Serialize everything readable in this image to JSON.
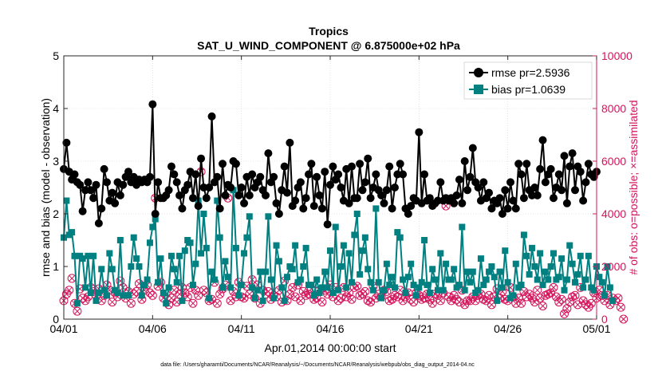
{
  "chart_data": {
    "type": "line",
    "title": "Tropics",
    "subtitle": "SAT_U_WIND_COMPONENT @ 6.875000e+02 hPa",
    "xlabel": "Apr.01,2014 00:00:00 start",
    "ylabel_left": "rmse and bias (model - observation)",
    "ylabel_right": "# of obs: o=possible; ×=assimilated",
    "footnote": "data file: /Users/gharamti/Documents/NCAR/Reanalysis/~/Documents/NCAR/Reanalysis/webpub/obs_diag_output_2014-04.nc",
    "xlim": [
      0,
      30
    ],
    "ylim_left": [
      0,
      5
    ],
    "ylim_right": [
      0,
      10000
    ],
    "x_tick_values": [
      0,
      5,
      10,
      15,
      20,
      25,
      30
    ],
    "x_tick_labels": [
      "04/01",
      "04/06",
      "04/11",
      "04/16",
      "04/21",
      "04/26",
      "05/01"
    ],
    "y_left_ticks": [
      0,
      1,
      2,
      3,
      4,
      5
    ],
    "y_right_ticks": [
      0,
      2000,
      4000,
      6000,
      8000,
      10000
    ],
    "legend": [
      "rmse pr=2.5936",
      "bias pr=1.0639"
    ],
    "legend_position": "top-right",
    "colors": {
      "rmse": "#000000",
      "bias": "#008080",
      "obs": "#d4145a",
      "axis_right": "#d4145a"
    },
    "rmse_values": [
      2.85,
      3.35,
      2.8,
      2.65,
      2.75,
      2.6,
      2.55,
      2.05,
      2.45,
      2.6,
      2.45,
      2.3,
      2.55,
      1.82,
      2.1,
      2.85,
      2.6,
      2.25,
      2.4,
      2.2,
      2.6,
      2.35,
      2.55,
      2.7,
      2.8,
      2.6,
      2.7,
      2.55,
      2.65,
      2.6,
      2.65,
      2.6,
      2.7,
      4.08,
      2.0,
      2.6,
      2.3,
      2.3,
      2.35,
      2.45,
      2.9,
      2.75,
      2.6,
      2.35,
      2.1,
      2.45,
      2.55,
      2.8,
      2.3,
      2.75,
      2.15,
      3.05,
      2.5,
      2.3,
      2.5,
      3.85,
      2.6,
      2.7,
      2.1,
      2.95,
      2.35,
      2.55,
      2.5,
      3.0,
      2.95,
      2.35,
      2.5,
      2.2,
      2.7,
      2.35,
      2.75,
      2.5,
      2.6,
      2.7,
      2.45,
      2.35,
      3.15,
      2.6,
      2.7,
      2.2,
      2.0,
      2.45,
      2.9,
      2.4,
      3.35,
      2.15,
      2.25,
      2.5,
      2.6,
      2.1,
      2.3,
      2.75,
      2.95,
      2.15,
      2.7,
      2.35,
      2.1,
      2.8,
      1.8,
      2.55,
      2.9,
      2.65,
      2.75,
      2.5,
      2.25,
      2.85,
      2.2,
      2.9,
      2.3,
      2.3,
      2.95,
      2.45,
      2.6,
      3.05,
      2.3,
      2.5,
      2.75,
      2.45,
      2.35,
      2.2,
      2.45,
      2.9,
      2.1,
      2.5,
      2.75,
      2.95,
      2.75,
      2.1,
      2.0,
      2.15,
      2.3,
      2.25,
      3.55,
      2.2,
      2.75,
      2.25,
      2.3,
      2.15,
      2.2,
      2.25,
      2.6,
      2.25,
      2.3,
      2.25,
      2.3,
      2.2,
      2.35,
      2.65,
      2.2,
      3.0,
      2.45,
      2.7,
      3.25,
      2.6,
      2.5,
      2.25,
      2.6,
      2.3,
      2.4,
      2.1,
      2.25,
      2.2,
      2.3,
      2.0,
      2.45,
      2.1,
      2.6,
      2.25,
      2.1,
      2.95,
      2.75,
      2.3,
      2.95,
      2.45,
      2.35,
      2.5,
      2.35,
      2.85,
      3.4,
      2.6,
      2.75,
      2.85,
      2.3,
      2.5,
      2.75,
      2.45,
      3.1,
      2.2,
      2.9,
      3.15,
      2.45,
      2.9,
      2.8,
      2.25,
      2.6,
      2.95,
      2.75,
      2.7,
      2.8
    ],
    "bias_values": [
      1.55,
      2.25,
      1.6,
      1.65,
      1.2,
      0.3,
      1.2,
      1.15,
      0.6,
      1.2,
      0.5,
      1.2,
      0.35,
      0.5,
      0.95,
      0.55,
      0.45,
      1.25,
      0.95,
      0.55,
      0.5,
      1.5,
      0.45,
      0.45,
      0.45,
      1.0,
      1.55,
      1.15,
      1.0,
      0.45,
      0.65,
      0.75,
      1.45,
      1.75,
      1.9,
      0.7,
      1.15,
      0.5,
      0.3,
      0.6,
      1.2,
      0.95,
      0.7,
      1.2,
      0.35,
      1.3,
      1.5,
      1.45,
      0.65,
      1.05,
      2.25,
      1.25,
      2.0,
      1.35,
      0.4,
      0.9,
      0.75,
      2.25,
      1.55,
      0.6,
      1.1,
      0.8,
      0.6,
      2.45,
      1.35,
      0.45,
      0.65,
      1.25,
      1.55,
      1.95,
      0.6,
      0.4,
      0.55,
      0.9,
      0.35,
      0.9,
      1.95,
      0.75,
      0.4,
      1.4,
      1.1,
      0.6,
      0.35,
      0.8,
      1.0,
      0.95,
      1.4,
      0.7,
      0.75,
      1.0,
      1.35,
      0.65,
      0.65,
      0.45,
      0.75,
      0.5,
      0.6,
      0.9,
      0.6,
      1.3,
      0.5,
      1.75,
      0.55,
      1.0,
      1.4,
      0.6,
      1.25,
      0.7,
      1.6,
      2.0,
      0.85,
      1.3,
      1.55,
      0.95,
      0.7,
      0.55,
      2.1,
      0.7,
      0.4,
      0.55,
      1.05,
      0.65,
      0.8,
      0.6,
      1.65,
      1.55,
      0.75,
      0.5,
      0.8,
      1.05,
      0.65,
      0.45,
      0.6,
      0.7,
      1.5,
      0.65,
      0.5,
      0.95,
      0.75,
      0.55,
      1.25,
      0.55,
      1.05,
      0.75,
      0.75,
      0.95,
      0.6,
      0.65,
      1.75,
      0.55,
      0.9,
      0.7,
      0.9,
      0.5,
      0.55,
      1.15,
      0.65,
      0.75,
      0.9,
      1.0,
      0.8,
      0.35,
      0.9,
      0.6,
      1.3,
      0.7,
      0.4,
      0.45,
      1.05,
      0.6,
      0.65,
      1.6,
      1.2,
      0.85,
      1.35,
      1.0,
      0.75,
      1.25,
      0.65,
      0.9,
      0.75,
      1.0,
      1.25,
      0.75,
      0.8,
      1.15,
      0.55,
      0.75,
      1.4,
      1.05,
      0.7,
      0.85,
      1.2,
      0.6,
      0.75,
      1.2,
      0.6,
      0.55,
      1.0,
      0.8,
      0.7,
      0.45,
      1.0,
      0.6,
      0.35
    ],
    "obs_possible": [
      700,
      950,
      1100,
      1550,
      600,
      300,
      1150,
      800,
      700,
      850,
      1200,
      1050,
      900,
      1150,
      700,
      900,
      1300,
      1100,
      650,
      1000,
      850,
      1450,
      1200,
      800,
      1050,
      600,
      950,
      1050,
      1350,
      750,
      1100,
      1300,
      1000,
      900,
      4600,
      1250,
      1400,
      800,
      950,
      550,
      800,
      1100,
      650,
      950,
      1200,
      1000,
      850,
      1200,
      600,
      1100,
      900,
      5600,
      1100,
      1000,
      700,
      750,
      1400,
      600,
      950,
      1150,
      1300,
      4600,
      700,
      1050,
      850,
      1400,
      850,
      800,
      1250,
      950,
      1500,
      800,
      1300,
      600,
      1100,
      950,
      1050,
      750,
      900,
      850,
      1100,
      650,
      1450,
      700,
      950,
      1200,
      850,
      1300,
      700,
      1050,
      900,
      950,
      1150,
      750,
      800,
      1100,
      650,
      1100,
      950,
      1300,
      850,
      1200,
      700,
      800,
      1200,
      850,
      1000,
      750,
      1200,
      1250,
      900,
      950,
      1050,
      700,
      650,
      1250,
      800,
      950,
      850,
      1100,
      1050,
      700,
      750,
      900,
      850,
      1100,
      700,
      850,
      1000,
      750,
      650,
      1000,
      900,
      750,
      800,
      950,
      750,
      600,
      950,
      900,
      700,
      1000,
      4300,
      850,
      700,
      900,
      750,
      650,
      1100,
      550,
      700,
      700,
      850,
      700,
      900,
      950,
      750,
      700,
      900,
      550,
      850,
      1150,
      800,
      1050,
      750,
      700,
      1200,
      850,
      600,
      800,
      600,
      1050,
      850,
      950,
      800,
      650,
      1100,
      800,
      500,
      900,
      950,
      1000,
      1200,
      850,
      650,
      750,
      200,
      400,
      650,
      850,
      900,
      550,
      1200,
      700,
      550,
      450,
      600,
      1000,
      800,
      1100,
      900,
      700,
      900,
      550,
      800,
      700,
      800,
      450,
      0
    ],
    "obs_assimilated": [
      700,
      950,
      1100,
      1550,
      600,
      300,
      1150,
      800,
      700,
      850,
      1200,
      1050,
      900,
      1150,
      700,
      900,
      1300,
      1100,
      650,
      1000,
      850,
      1450,
      1200,
      800,
      1050,
      600,
      950,
      1050,
      1350,
      750,
      1100,
      1300,
      1000,
      900,
      4600,
      1250,
      1400,
      800,
      950,
      550,
      800,
      1100,
      650,
      950,
      1200,
      1000,
      850,
      1200,
      600,
      1100,
      900,
      5600,
      1100,
      1000,
      700,
      750,
      1400,
      600,
      950,
      1150,
      1300,
      4600,
      700,
      1050,
      850,
      1400,
      850,
      800,
      1250,
      950,
      1500,
      800,
      1300,
      600,
      1100,
      950,
      1050,
      750,
      900,
      850,
      1100,
      650,
      1450,
      700,
      950,
      1200,
      850,
      1300,
      700,
      1050,
      900,
      950,
      1150,
      750,
      800,
      1100,
      650,
      1100,
      950,
      1300,
      850,
      1200,
      700,
      800,
      1200,
      850,
      1000,
      750,
      1200,
      1250,
      900,
      950,
      1050,
      700,
      650,
      1250,
      800,
      950,
      850,
      1100,
      1050,
      700,
      750,
      900,
      850,
      1100,
      700,
      850,
      1000,
      750,
      650,
      1000,
      900,
      750,
      800,
      950,
      750,
      600,
      950,
      900,
      700,
      1000,
      4300,
      850,
      700,
      900,
      750,
      650,
      1100,
      550,
      700,
      700,
      850,
      700,
      900,
      950,
      750,
      700,
      900,
      550,
      850,
      1150,
      800,
      1050,
      750,
      700,
      1200,
      850,
      600,
      800,
      600,
      1050,
      850,
      950,
      800,
      650,
      1100,
      800,
      500,
      900,
      950,
      1000,
      1200,
      850,
      650,
      750,
      200,
      400,
      650,
      850,
      900,
      550,
      1200,
      700,
      550,
      450,
      600,
      1000,
      800,
      1100,
      900,
      700,
      900,
      550,
      800,
      700,
      800,
      450,
      0
    ]
  }
}
